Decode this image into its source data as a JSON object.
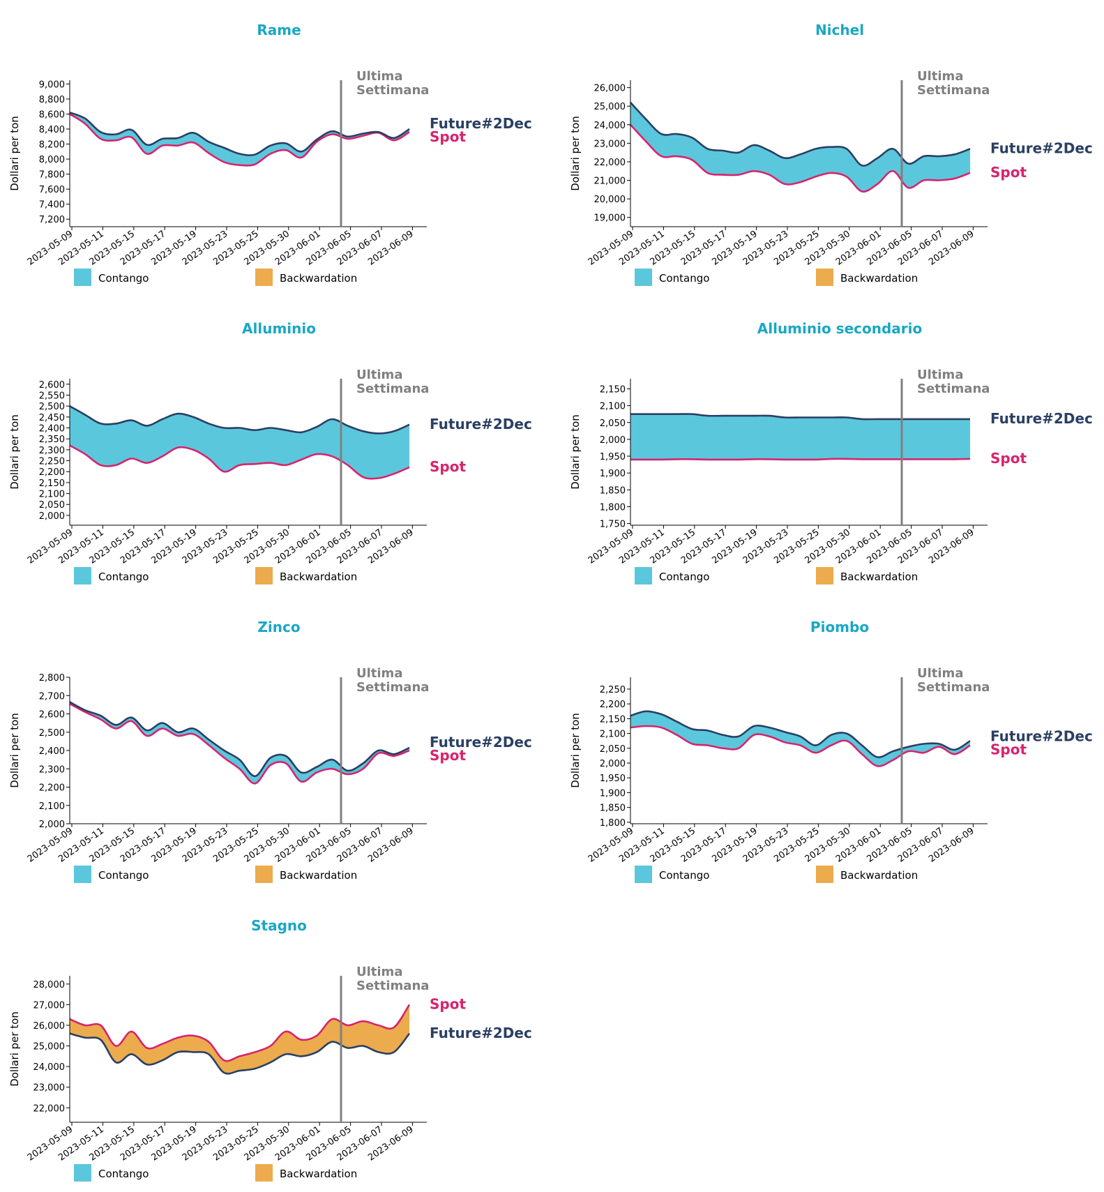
{
  "colors": {
    "title": "#1aa7c4",
    "future": "#2a3f63",
    "spot": "#d6246e",
    "contango": "#5bc7dc",
    "backwardation": "#ecab4d",
    "marker": "#808080"
  },
  "common": {
    "ylabel": "Dollari per ton",
    "marker_label_line1": "Ultima",
    "marker_label_line2": "Settimana",
    "future_label": "Future#2Dec",
    "spot_label": "Spot",
    "legend": [
      "Contango",
      "Backwardation"
    ],
    "x_ticks": [
      "2023-05-09",
      "2023-05-11",
      "2023-05-15",
      "2023-05-17",
      "2023-05-19",
      "2023-05-23",
      "2023-05-25",
      "2023-05-30",
      "2023-06-01",
      "2023-06-05",
      "2023-06-07",
      "2023-06-09"
    ]
  },
  "chart_data": [
    {
      "type": "area",
      "title": "Rame",
      "ylabel": "Dollari per ton",
      "ylim": [
        7100,
        9050
      ],
      "yticks": [
        7200,
        7400,
        7600,
        7800,
        8000,
        8200,
        8400,
        8600,
        8800,
        9000
      ],
      "series": [
        {
          "name": "Future#2Dec",
          "values": [
            8620,
            8540,
            8360,
            8330,
            8390,
            8190,
            8270,
            8280,
            8350,
            8230,
            8150,
            8070,
            8060,
            8180,
            8210,
            8100,
            8260,
            8370,
            8300,
            8340,
            8360,
            8280,
            8400
          ]
        },
        {
          "name": "Spot",
          "values": [
            8600,
            8470,
            8270,
            8250,
            8290,
            8070,
            8180,
            8180,
            8220,
            8080,
            7960,
            7920,
            7930,
            8070,
            8120,
            8020,
            8230,
            8330,
            8270,
            8310,
            8350,
            8250,
            8360
          ]
        }
      ]
    },
    {
      "type": "area",
      "title": "Nichel",
      "ylabel": "Dollari per ton",
      "ylim": [
        18500,
        26400
      ],
      "yticks": [
        19000,
        20000,
        21000,
        22000,
        23000,
        24000,
        25000,
        26000
      ],
      "series": [
        {
          "name": "Future#2Dec",
          "values": [
            25200,
            24300,
            23500,
            23500,
            23300,
            22700,
            22600,
            22500,
            22900,
            22600,
            22200,
            22400,
            22700,
            22800,
            22700,
            21800,
            22200,
            22700,
            21900,
            22300,
            22300,
            22400,
            22700
          ]
        },
        {
          "name": "Spot",
          "values": [
            24000,
            23100,
            22300,
            22300,
            22100,
            21400,
            21300,
            21300,
            21500,
            21300,
            20800,
            20900,
            21200,
            21400,
            21200,
            20400,
            20800,
            21500,
            20600,
            21000,
            21000,
            21100,
            21400
          ]
        }
      ]
    },
    {
      "type": "area",
      "title": "Alluminio",
      "ylabel": "Dollari per ton",
      "ylim": [
        1955,
        2625
      ],
      "yticks": [
        2000,
        2050,
        2100,
        2150,
        2200,
        2250,
        2300,
        2350,
        2400,
        2450,
        2500,
        2550,
        2600
      ],
      "series": [
        {
          "name": "Future#2Dec",
          "values": [
            2500,
            2460,
            2420,
            2420,
            2435,
            2410,
            2440,
            2465,
            2450,
            2420,
            2400,
            2400,
            2390,
            2400,
            2390,
            2380,
            2405,
            2440,
            2410,
            2385,
            2375,
            2385,
            2415
          ]
        },
        {
          "name": "Spot",
          "values": [
            2320,
            2280,
            2230,
            2230,
            2260,
            2240,
            2270,
            2310,
            2300,
            2260,
            2200,
            2230,
            2235,
            2240,
            2230,
            2255,
            2280,
            2270,
            2230,
            2175,
            2170,
            2190,
            2220
          ]
        }
      ]
    },
    {
      "type": "area",
      "title": "Alluminio secondario",
      "ylabel": "Dollari per ton",
      "ylim": [
        1745,
        2180
      ],
      "yticks": [
        1750,
        1800,
        1850,
        1900,
        1950,
        2000,
        2050,
        2100,
        2150
      ],
      "series": [
        {
          "name": "Future#2Dec",
          "values": [
            2075,
            2075,
            2075,
            2075,
            2075,
            2070,
            2070,
            2070,
            2070,
            2070,
            2065,
            2065,
            2065,
            2065,
            2065,
            2060,
            2060,
            2060,
            2060,
            2060,
            2060,
            2060,
            2060
          ]
        },
        {
          "name": "Spot",
          "values": [
            1940,
            1940,
            1940,
            1941,
            1941,
            1940,
            1940,
            1940,
            1941,
            1941,
            1940,
            1940,
            1940,
            1942,
            1942,
            1941,
            1941,
            1941,
            1941,
            1941,
            1941,
            1941,
            1942
          ]
        }
      ]
    },
    {
      "type": "area",
      "title": "Zinco",
      "ylabel": "Dollari per ton",
      "ylim": [
        2000,
        2800
      ],
      "yticks": [
        2000,
        2100,
        2200,
        2300,
        2400,
        2500,
        2600,
        2700,
        2800
      ],
      "series": [
        {
          "name": "Future#2Dec",
          "values": [
            2665,
            2620,
            2590,
            2540,
            2580,
            2510,
            2550,
            2500,
            2520,
            2460,
            2400,
            2350,
            2260,
            2360,
            2370,
            2280,
            2310,
            2350,
            2290,
            2330,
            2400,
            2380,
            2415
          ]
        },
        {
          "name": "Spot",
          "values": [
            2655,
            2610,
            2570,
            2520,
            2560,
            2480,
            2520,
            2480,
            2490,
            2430,
            2360,
            2300,
            2220,
            2320,
            2330,
            2230,
            2280,
            2300,
            2270,
            2300,
            2385,
            2370,
            2400
          ]
        }
      ]
    },
    {
      "type": "area",
      "title": "Piombo",
      "ylabel": "Dollari per ton",
      "ylim": [
        1795,
        2290
      ],
      "yticks": [
        1800,
        1850,
        1900,
        1950,
        2000,
        2050,
        2100,
        2150,
        2200,
        2250
      ],
      "series": [
        {
          "name": "Future#2Dec",
          "values": [
            2160,
            2175,
            2165,
            2140,
            2115,
            2110,
            2095,
            2090,
            2125,
            2120,
            2105,
            2090,
            2060,
            2095,
            2100,
            2060,
            2020,
            2040,
            2055,
            2065,
            2065,
            2045,
            2075
          ]
        },
        {
          "name": "Spot",
          "values": [
            2120,
            2125,
            2120,
            2095,
            2065,
            2060,
            2050,
            2050,
            2095,
            2090,
            2070,
            2060,
            2035,
            2060,
            2075,
            2030,
            1990,
            2010,
            2040,
            2035,
            2055,
            2030,
            2060
          ]
        }
      ]
    },
    {
      "type": "area",
      "title": "Stagno",
      "ylabel": "Dollari per ton",
      "ylim": [
        21300,
        28400
      ],
      "yticks": [
        22000,
        23000,
        24000,
        25000,
        26000,
        27000,
        28000
      ],
      "series": [
        {
          "name": "Future#2Dec",
          "values": [
            25600,
            25400,
            25300,
            24200,
            24600,
            24100,
            24300,
            24700,
            24700,
            24600,
            23700,
            23800,
            23900,
            24200,
            24600,
            24500,
            24700,
            25200,
            24900,
            25000,
            24700,
            24700,
            25600
          ]
        },
        {
          "name": "Spot",
          "values": [
            26300,
            26000,
            26000,
            25000,
            25700,
            24900,
            25100,
            25400,
            25500,
            25200,
            24300,
            24500,
            24700,
            25000,
            25700,
            25300,
            25500,
            26300,
            26000,
            26200,
            26000,
            25900,
            27000
          ]
        }
      ]
    }
  ]
}
